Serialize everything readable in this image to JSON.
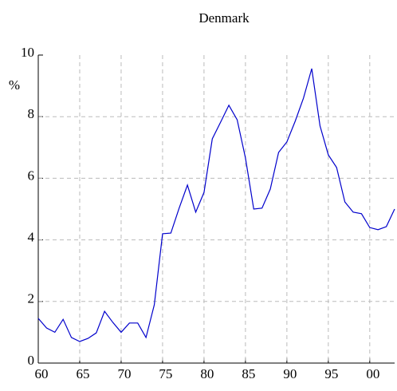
{
  "chart_data": {
    "type": "line",
    "title": "Denmark",
    "y_label": "%",
    "x": [
      1960,
      1961,
      1962,
      1963,
      1964,
      1965,
      1966,
      1967,
      1968,
      1969,
      1970,
      1971,
      1972,
      1973,
      1974,
      1975,
      1976,
      1977,
      1978,
      1979,
      1980,
      1981,
      1982,
      1983,
      1984,
      1985,
      1986,
      1987,
      1988,
      1989,
      1990,
      1991,
      1992,
      1993,
      1994,
      1995,
      1996,
      1997,
      1998,
      1999,
      2000,
      2001,
      2002,
      2003
    ],
    "series": [
      {
        "name": "Denmark",
        "color": "#0000cc",
        "values": [
          1.45,
          1.14,
          1.0,
          1.42,
          0.83,
          0.7,
          0.8,
          0.98,
          1.68,
          1.32,
          1.0,
          1.3,
          1.3,
          0.83,
          1.89,
          4.2,
          4.22,
          5.03,
          5.78,
          4.9,
          5.54,
          7.28,
          7.82,
          8.37,
          7.9,
          6.66,
          5.0,
          5.03,
          5.65,
          6.84,
          7.18,
          7.85,
          8.6,
          9.56,
          7.7,
          6.76,
          6.35,
          5.23,
          4.9,
          4.85,
          4.4,
          4.33,
          4.43,
          5.0
        ]
      }
    ],
    "xlim": [
      1960,
      2003
    ],
    "xticks": [
      {
        "value": 1960,
        "label": "60"
      },
      {
        "value": 1965,
        "label": "65"
      },
      {
        "value": 1970,
        "label": "70"
      },
      {
        "value": 1975,
        "label": "75"
      },
      {
        "value": 1980,
        "label": "80"
      },
      {
        "value": 1985,
        "label": "85"
      },
      {
        "value": 1990,
        "label": "90"
      },
      {
        "value": 1995,
        "label": "95"
      },
      {
        "value": 2000,
        "label": "00"
      }
    ],
    "ylim": [
      0,
      10
    ],
    "yticks": [
      0,
      2,
      4,
      6,
      8,
      10
    ],
    "grid": true
  }
}
